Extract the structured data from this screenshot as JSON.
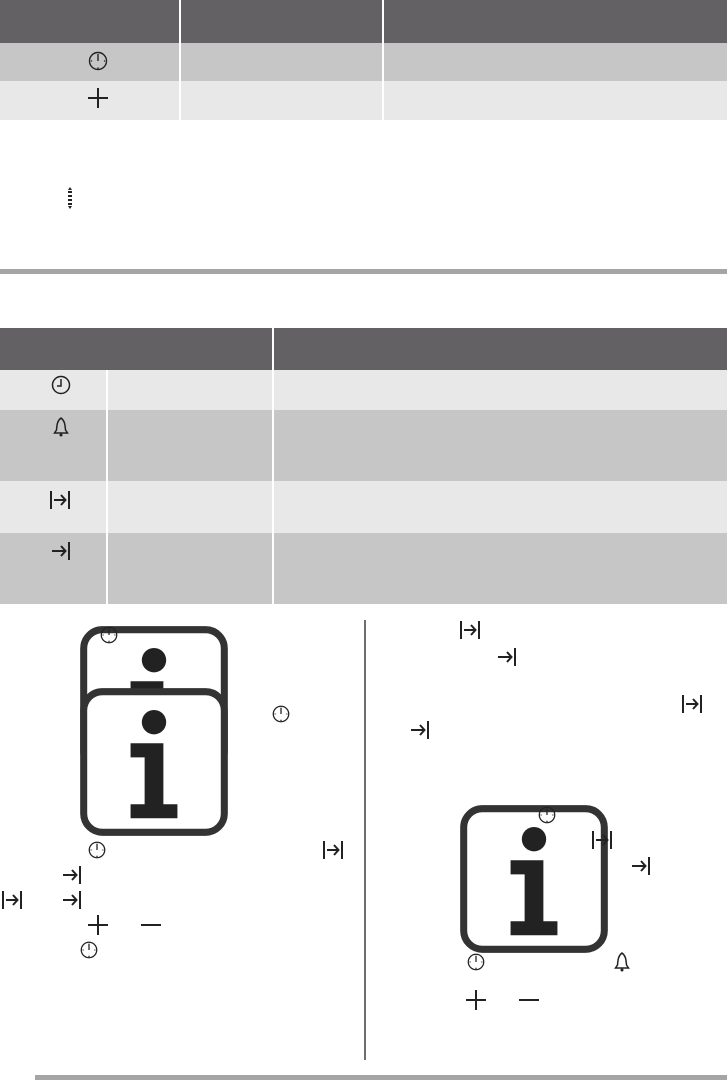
{
  "colors": {
    "header": "#636163",
    "row_dark": "#c6c6c6",
    "row_light": "#e8e8e8",
    "rule": "#a5a5a5",
    "divider": "#6e6e6e"
  },
  "table1": {
    "rows": [
      {
        "icon": "clock-icon"
      },
      {
        "icon": "plus-icon"
      }
    ]
  },
  "table2": {
    "rows": [
      {
        "icon": "clock-hands-icon"
      },
      {
        "icon": "bell-icon"
      },
      {
        "icon": "duration-icon"
      },
      {
        "icon": "end-icon"
      }
    ]
  },
  "icons_used": [
    "info-icon",
    "clock-icon",
    "plus-icon",
    "minus-icon",
    "bell-icon",
    "duration-icon",
    "end-icon",
    "scroll-indicator-icon"
  ]
}
